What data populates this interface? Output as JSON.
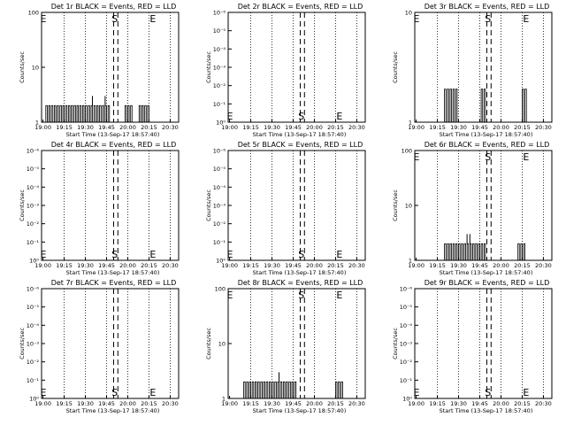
{
  "chart_data": [
    {
      "type": "line",
      "title": "Det 1r BLACK = Events, RED = LLD",
      "xlabel": "Start Time (13-Sep-17 18:57:40)",
      "ylabel": "Counts/sec",
      "x_ticks": [
        "19:00",
        "19:15",
        "19:30",
        "19:45",
        "20:00",
        "20:15",
        "20:30"
      ],
      "y_ticks": [
        "1",
        "10",
        "100"
      ],
      "ylim": [
        1,
        100
      ],
      "y_scale": "log",
      "markers": [
        {
          "label": "E",
          "x": "18:59"
        },
        {
          "label": "S",
          "x": "19:52"
        },
        {
          "label": "E",
          "x": "20:19"
        }
      ],
      "event_lines_dashed": [
        "19:50",
        "19:53"
      ],
      "series": [
        {
          "color": "black",
          "blocks": [
            {
              "from": "19:02",
              "to": "19:48",
              "base": 1,
              "level": 2,
              "peaks": [
                {
                  "at": "19:35",
                  "value": 3
                },
                {
                  "at": "19:44",
                  "value": 3
                }
              ]
            },
            {
              "from": "19:58",
              "to": "20:03",
              "base": 1,
              "level": 2
            },
            {
              "from": "20:08",
              "to": "20:16",
              "base": 1,
              "level": 2
            }
          ]
        }
      ]
    },
    {
      "type": "line",
      "title": "Det 2r BLACK = Events, RED = LLD",
      "xlabel": "Start Time (13-Sep-17 18:57:40)",
      "ylabel": "Counts/sec",
      "x_ticks": [
        "19:00",
        "19:15",
        "19:30",
        "19:45",
        "20:00",
        "20:15",
        "20:30"
      ],
      "y_ticks": [
        "10⁰",
        "10⁻¹",
        "10⁻²",
        "10⁻³",
        "10⁻⁴",
        "10⁻⁵",
        "10⁻⁶"
      ],
      "ylim": [
        1,
        1e-06
      ],
      "y_scale": "log",
      "markers": [
        {
          "label": "E",
          "x": "18:59"
        },
        {
          "label": "S",
          "x": "19:52"
        },
        {
          "label": "E",
          "x": "20:19"
        }
      ],
      "event_lines_dashed": [
        "19:50",
        "19:53"
      ],
      "series": []
    },
    {
      "type": "line",
      "title": "Det 3r BLACK = Events, RED = LLD",
      "xlabel": "Start Time (13-Sep-17 18:57:40)",
      "ylabel": "Counts/sec",
      "x_ticks": [
        "19:00",
        "19:15",
        "19:30",
        "19:45",
        "20:00",
        "20:15",
        "20:30"
      ],
      "y_ticks": [
        "1",
        "10"
      ],
      "ylim": [
        1,
        10
      ],
      "y_scale": "log",
      "markers": [
        {
          "label": "E",
          "x": "18:59"
        },
        {
          "label": "S",
          "x": "19:52"
        },
        {
          "label": "E",
          "x": "20:19"
        }
      ],
      "event_lines_dashed": [
        "19:50",
        "19:53"
      ],
      "series": [
        {
          "color": "black",
          "blocks": [
            {
              "from": "19:20",
              "to": "19:30",
              "base": 1,
              "level": 2
            },
            {
              "from": "19:46",
              "to": "19:50",
              "base": 1,
              "level": 2
            },
            {
              "from": "20:15",
              "to": "20:19",
              "base": 1,
              "level": 2
            }
          ]
        }
      ]
    },
    {
      "type": "line",
      "title": "Det 4r BLACK = Events, RED = LLD",
      "xlabel": "Start Time (13-Sep-17 18:57:40)",
      "ylabel": "Counts/sec",
      "x_ticks": [
        "19:00",
        "19:15",
        "19:30",
        "19:45",
        "20:00",
        "20:15",
        "20:30"
      ],
      "y_ticks": [
        "10⁰",
        "10⁻¹",
        "10⁻²",
        "10⁻³",
        "10⁻⁴",
        "10⁻⁵",
        "10⁻⁶"
      ],
      "ylim": [
        1,
        1e-06
      ],
      "y_scale": "log",
      "markers": [
        {
          "label": "E",
          "x": "18:59"
        },
        {
          "label": "S",
          "x": "19:52"
        },
        {
          "label": "E",
          "x": "20:19"
        }
      ],
      "event_lines_dashed": [
        "19:50",
        "19:53"
      ],
      "series": []
    },
    {
      "type": "line",
      "title": "Det 5r BLACK = Events, RED = LLD",
      "xlabel": "Start Time (13-Sep-17 18:57:40)",
      "ylabel": "Counts/sec",
      "x_ticks": [
        "19:00",
        "19:15",
        "19:30",
        "19:45",
        "20:00",
        "20:15",
        "20:30"
      ],
      "y_ticks": [
        "10⁰",
        "10⁻¹",
        "10⁻²",
        "10⁻³",
        "10⁻⁴",
        "10⁻⁵",
        "10⁻⁶"
      ],
      "ylim": [
        1,
        1e-06
      ],
      "y_scale": "log",
      "markers": [
        {
          "label": "E",
          "x": "18:59"
        },
        {
          "label": "S",
          "x": "19:52"
        },
        {
          "label": "E",
          "x": "20:19"
        }
      ],
      "event_lines_dashed": [
        "19:50",
        "19:53"
      ],
      "series": []
    },
    {
      "type": "line",
      "title": "Det 6r BLACK = Events, RED = LLD",
      "xlabel": "Start Time (13-Sep-17 18:57:40)",
      "ylabel": "Counts/sec",
      "x_ticks": [
        "19:00",
        "19:15",
        "19:30",
        "19:45",
        "20:00",
        "20:15",
        "20:30"
      ],
      "y_ticks": [
        "1",
        "10",
        "100"
      ],
      "ylim": [
        1,
        100
      ],
      "y_scale": "log",
      "markers": [
        {
          "label": "E",
          "x": "18:59"
        },
        {
          "label": "S",
          "x": "19:52"
        },
        {
          "label": "E",
          "x": "20:19"
        }
      ],
      "event_lines_dashed": [
        "19:50",
        "19:53"
      ],
      "series": [
        {
          "color": "black",
          "blocks": [
            {
              "from": "19:20",
              "to": "19:49",
              "base": 1,
              "level": 2,
              "peaks": [
                {
                  "at": "19:36",
                  "value": 3
                },
                {
                  "at": "19:38",
                  "value": 3
                }
              ]
            },
            {
              "from": "20:12",
              "to": "20:17",
              "base": 1,
              "level": 2
            }
          ]
        }
      ]
    },
    {
      "type": "line",
      "title": "Det 7r BLACK = Events, RED = LLD",
      "xlabel": "Start Time (13-Sep-17 18:57:40)",
      "ylabel": "Counts/sec",
      "x_ticks": [
        "19:00",
        "19:15",
        "19:30",
        "19:45",
        "20:00",
        "20:15",
        "20:30"
      ],
      "y_ticks": [
        "10⁰",
        "10⁻¹",
        "10⁻²",
        "10⁻³",
        "10⁻⁴",
        "10⁻⁵",
        "10⁻⁶"
      ],
      "ylim": [
        1,
        1e-06
      ],
      "y_scale": "log",
      "markers": [
        {
          "label": "E",
          "x": "18:59"
        },
        {
          "label": "S",
          "x": "19:52"
        },
        {
          "label": "E",
          "x": "20:19"
        }
      ],
      "event_lines_dashed": [
        "19:50",
        "19:53"
      ],
      "series": []
    },
    {
      "type": "line",
      "title": "Det 8r BLACK = Events, RED = LLD",
      "xlabel": "Start Time (13-Sep-17 18:57:40)",
      "ylabel": "Counts/sec",
      "x_ticks": [
        "19:00",
        "19:15",
        "19:30",
        "19:45",
        "20:00",
        "20:15",
        "20:30"
      ],
      "y_ticks": [
        "1",
        "10",
        "100"
      ],
      "ylim": [
        1,
        100
      ],
      "y_scale": "log",
      "markers": [
        {
          "label": "E",
          "x": "18:59"
        },
        {
          "label": "S",
          "x": "19:52"
        },
        {
          "label": "E",
          "x": "20:19"
        }
      ],
      "event_lines_dashed": [
        "19:50",
        "19:53"
      ],
      "series": [
        {
          "color": "black",
          "blocks": [
            {
              "from": "19:10",
              "to": "19:48",
              "base": 1,
              "level": 2,
              "peaks": [
                {
                  "at": "19:35",
                  "value": 3
                }
              ]
            },
            {
              "from": "20:15",
              "to": "20:20",
              "base": 1,
              "level": 2
            }
          ]
        }
      ]
    },
    {
      "type": "line",
      "title": "Det 9r BLACK = Events, RED = LLD",
      "xlabel": "Start Time (13-Sep-17 18:57:40)",
      "ylabel": "Counts/sec",
      "x_ticks": [
        "19:00",
        "19:15",
        "19:30",
        "19:45",
        "20:00",
        "20:15",
        "20:30"
      ],
      "y_ticks": [
        "10⁰",
        "10⁻¹",
        "10⁻²",
        "10⁻³",
        "10⁻⁴",
        "10⁻⁵",
        "10⁻⁶"
      ],
      "ylim": [
        1,
        1e-06
      ],
      "y_scale": "log",
      "markers": [
        {
          "label": "E",
          "x": "18:59"
        },
        {
          "label": "S",
          "x": "19:52"
        },
        {
          "label": "E",
          "x": "20:19"
        }
      ],
      "event_lines_dashed": [
        "19:50",
        "19:53"
      ],
      "series": []
    }
  ]
}
